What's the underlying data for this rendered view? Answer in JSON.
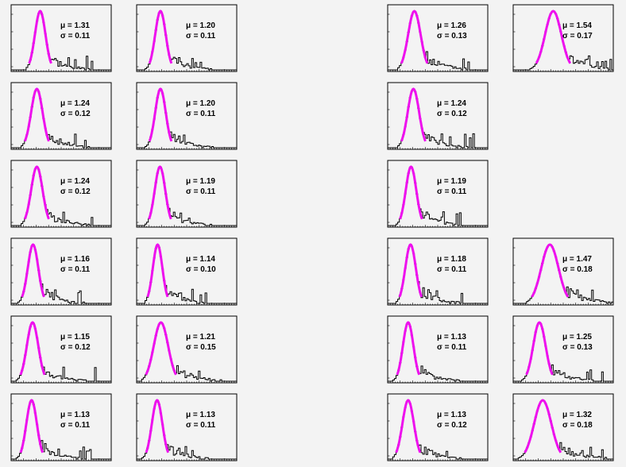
{
  "chart_data": {
    "type": "histogram-grid",
    "layout": {
      "rows": 6,
      "columns": 5
    },
    "colors": {
      "histogram": "#000000",
      "fit": "#ee10ee",
      "background": "#f3f3f3"
    },
    "panels": [
      {
        "row": 0,
        "col": 0,
        "mu": "1.31",
        "sigma": "0.11",
        "mu_label": "μ = 1.31",
        "sigma_label": "σ = 0.11"
      },
      {
        "row": 0,
        "col": 1,
        "mu": "1.20",
        "sigma": "0.11",
        "mu_label": "μ = 1.20",
        "sigma_label": "σ = 0.11"
      },
      {
        "row": 0,
        "col": 3,
        "mu": "1.26",
        "sigma": "0.13",
        "mu_label": "μ = 1.26",
        "sigma_label": "σ = 0.13"
      },
      {
        "row": 0,
        "col": 4,
        "mu": "1.54",
        "sigma": "0.17",
        "mu_label": "μ = 1.54",
        "sigma_label": "σ = 0.17"
      },
      {
        "row": 1,
        "col": 0,
        "mu": "1.24",
        "sigma": "0.12",
        "mu_label": "μ = 1.24",
        "sigma_label": "σ = 0.12"
      },
      {
        "row": 1,
        "col": 1,
        "mu": "1.20",
        "sigma": "0.11",
        "mu_label": "μ = 1.20",
        "sigma_label": "σ = 0.11"
      },
      {
        "row": 1,
        "col": 3,
        "mu": "1.24",
        "sigma": "0.12",
        "mu_label": "μ = 1.24",
        "sigma_label": "σ = 0.12"
      },
      {
        "row": 2,
        "col": 0,
        "mu": "1.24",
        "sigma": "0.12",
        "mu_label": "μ = 1.24",
        "sigma_label": "σ = 0.12"
      },
      {
        "row": 2,
        "col": 1,
        "mu": "1.19",
        "sigma": "0.11",
        "mu_label": "μ = 1.19",
        "sigma_label": "σ = 0.11"
      },
      {
        "row": 2,
        "col": 3,
        "mu": "1.19",
        "sigma": "0.11",
        "mu_label": "μ = 1.19",
        "sigma_label": "σ = 0.11"
      },
      {
        "row": 3,
        "col": 0,
        "mu": "1.16",
        "sigma": "0.11",
        "mu_label": "μ = 1.16",
        "sigma_label": "σ = 0.11"
      },
      {
        "row": 3,
        "col": 1,
        "mu": "1.14",
        "sigma": "0.10",
        "mu_label": "μ = 1.14",
        "sigma_label": "σ = 0.10"
      },
      {
        "row": 3,
        "col": 3,
        "mu": "1.18",
        "sigma": "0.11",
        "mu_label": "μ = 1.18",
        "sigma_label": "σ = 0.11"
      },
      {
        "row": 3,
        "col": 4,
        "mu": "1.47",
        "sigma": "0.18",
        "mu_label": "μ = 1.47",
        "sigma_label": "σ = 0.18"
      },
      {
        "row": 4,
        "col": 0,
        "mu": "1.15",
        "sigma": "0.12",
        "mu_label": "μ = 1.15",
        "sigma_label": "σ = 0.12"
      },
      {
        "row": 4,
        "col": 1,
        "mu": "1.21",
        "sigma": "0.15",
        "mu_label": "μ = 1.21",
        "sigma_label": "σ = 0.15"
      },
      {
        "row": 4,
        "col": 3,
        "mu": "1.13",
        "sigma": "0.11",
        "mu_label": "μ = 1.13",
        "sigma_label": "σ = 0.11"
      },
      {
        "row": 4,
        "col": 4,
        "mu": "1.25",
        "sigma": "0.13",
        "mu_label": "μ = 1.25",
        "sigma_label": "σ = 0.13"
      },
      {
        "row": 5,
        "col": 0,
        "mu": "1.13",
        "sigma": "0.11",
        "mu_label": "μ = 1.13",
        "sigma_label": "σ = 0.11"
      },
      {
        "row": 5,
        "col": 1,
        "mu": "1.13",
        "sigma": "0.11",
        "mu_label": "μ = 1.13",
        "sigma_label": "σ = 0.11"
      },
      {
        "row": 5,
        "col": 3,
        "mu": "1.13",
        "sigma": "0.12",
        "mu_label": "μ = 1.13",
        "sigma_label": "σ = 0.12"
      },
      {
        "row": 5,
        "col": 4,
        "mu": "1.32",
        "sigma": "0.18",
        "mu_label": "μ = 1.32",
        "sigma_label": "σ = 0.18"
      }
    ]
  }
}
